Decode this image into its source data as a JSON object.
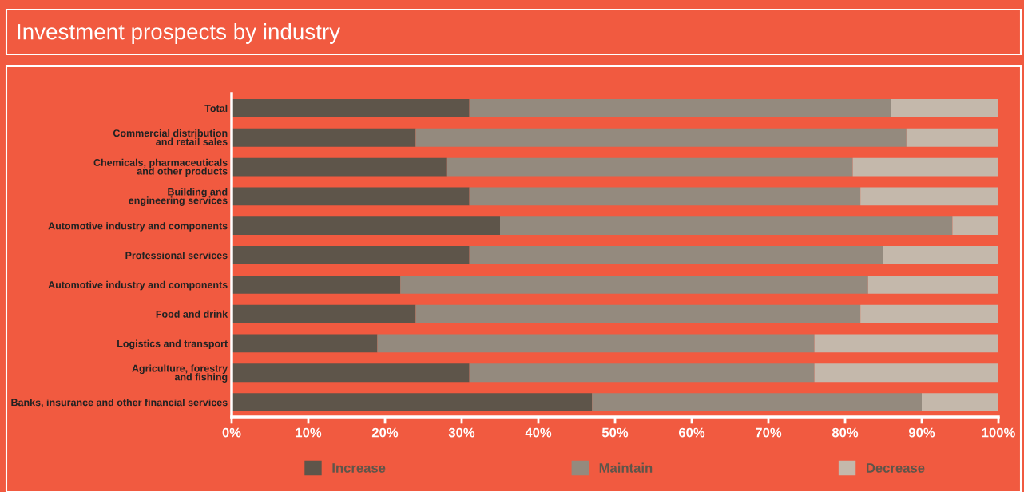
{
  "chart_data": {
    "type": "bar",
    "orientation": "horizontal",
    "stacked": true,
    "title": "Investment prospects by industry",
    "categories": [
      "Total",
      "Commercial distribution\nand retail sales",
      "Chemicals, pharmaceuticals\nand other products",
      "Building and\nengineering services",
      "Automotive industry and components",
      "Professional services",
      "Automotive industry and components",
      "Food and drink",
      "Logistics and transport",
      "Agriculture, forestry\nand fishing",
      "Banks, insurance and other financial services"
    ],
    "series": [
      {
        "name": "Increase",
        "color": "#5e554a",
        "values": [
          31,
          24,
          28,
          31,
          35,
          31,
          22,
          24,
          19,
          31,
          47
        ]
      },
      {
        "name": "Maintain",
        "color": "#948a7e",
        "values": [
          55,
          64,
          53,
          51,
          59,
          54,
          61,
          58,
          57,
          45,
          43
        ]
      },
      {
        "name": "Decrease",
        "color": "#c4b8ab",
        "values": [
          14,
          12,
          19,
          18,
          6,
          15,
          17,
          18,
          24,
          24,
          10
        ]
      }
    ],
    "xlim": [
      0,
      100
    ],
    "xticks": [
      {
        "value": 0,
        "label": "0%"
      },
      {
        "value": 10,
        "label": "10%"
      },
      {
        "value": 20,
        "label": "20%"
      },
      {
        "value": 30,
        "label": "30%"
      },
      {
        "value": 40,
        "label": "40%"
      },
      {
        "value": 50,
        "label": "50%"
      },
      {
        "value": 60,
        "label": "60%"
      },
      {
        "value": 70,
        "label": "70%"
      },
      {
        "value": 80,
        "label": "80%"
      },
      {
        "value": 90,
        "label": "90%"
      },
      {
        "value": 100,
        "label": "100%"
      }
    ],
    "grid": false,
    "legend": "bottom"
  }
}
